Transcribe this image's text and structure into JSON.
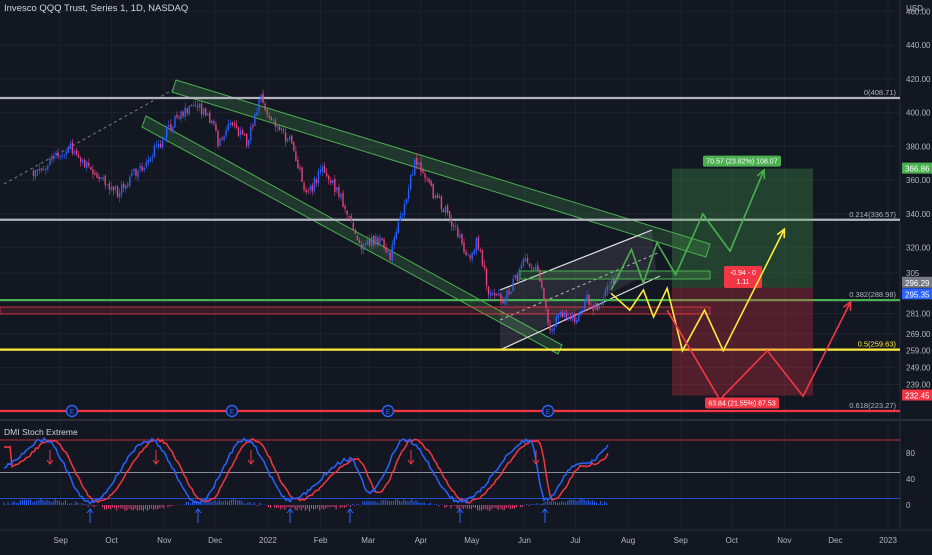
{
  "header": {
    "title": "Invesco QQQ Trust, Series 1, 1D, NASDAQ",
    "currency": "USD"
  },
  "indicator": {
    "title": "DMI Stoch Extreme"
  },
  "colors": {
    "background": "#131722",
    "grid": "#1e222d",
    "up": "#2962ff",
    "down": "#ec407a",
    "fib_gray": "#b2b5be",
    "fib_green": "#4caf50",
    "fib_yellow": "#ffeb3b",
    "fib_red": "#f23645",
    "channel": "#4caf50",
    "stoch_k": "#2962ff",
    "stoch_d": "#f23645"
  },
  "chart_data": {
    "type": "candlestick",
    "y_axis": {
      "ticks": [
        460,
        440,
        420,
        400,
        380,
        360,
        340,
        320,
        305,
        296.29,
        281,
        269,
        259,
        249,
        239
      ],
      "tick_labels": [
        "460.00",
        "440.00",
        "420.00",
        "400.00",
        "380.00",
        "360.00",
        "340.00",
        "320.00",
        "305",
        "296.29",
        "281.00",
        "269.00",
        "259.00",
        "249.00",
        "239.00"
      ],
      "ylim": [
        225,
        475
      ]
    },
    "x_axis": {
      "tick_labels": [
        "Sep",
        "Oct",
        "Nov",
        "Dec",
        "2022",
        "Feb",
        "Mar",
        "Apr",
        "May",
        "Jun",
        "Jul",
        "Aug",
        "Sep",
        "Oct",
        "Nov",
        "Dec",
        "2023"
      ]
    },
    "price_path": [
      [
        "2021-08-16",
        366
      ],
      [
        "2021-08-25",
        370
      ],
      [
        "2021-09-07",
        379
      ],
      [
        "2021-09-20",
        366
      ],
      [
        "2021-10-04",
        353
      ],
      [
        "2021-10-13",
        362
      ],
      [
        "2021-10-27",
        378
      ],
      [
        "2021-11-08",
        398
      ],
      [
        "2021-11-19",
        405
      ],
      [
        "2021-11-30",
        392
      ],
      [
        "2021-12-03",
        380
      ],
      [
        "2021-12-10",
        396
      ],
      [
        "2021-12-20",
        382
      ],
      [
        "2021-12-28",
        408
      ],
      [
        "2022-01-05",
        392
      ],
      [
        "2022-01-14",
        383
      ],
      [
        "2022-01-24",
        350
      ],
      [
        "2022-02-02",
        368
      ],
      [
        "2022-02-14",
        347
      ],
      [
        "2022-02-24",
        322
      ],
      [
        "2022-03-07",
        325
      ],
      [
        "2022-03-14",
        316
      ],
      [
        "2022-03-29",
        372
      ],
      [
        "2022-04-08",
        352
      ],
      [
        "2022-04-20",
        335
      ],
      [
        "2022-04-29",
        313
      ],
      [
        "2022-05-04",
        325
      ],
      [
        "2022-05-12",
        291
      ],
      [
        "2022-05-20",
        290
      ],
      [
        "2022-06-02",
        313
      ],
      [
        "2022-06-08",
        310
      ],
      [
        "2022-06-16",
        272
      ],
      [
        "2022-06-22",
        281
      ],
      [
        "2022-07-01",
        278
      ],
      [
        "2022-07-08",
        290
      ],
      [
        "2022-07-14",
        283
      ],
      [
        "2022-07-22",
        299
      ],
      [
        "2022-07-28",
        305
      ]
    ],
    "fib_levels": [
      {
        "ratio": "0",
        "label": "0(408.71)",
        "price": 408.71,
        "color": "#b2b5be"
      },
      {
        "ratio": "0.214",
        "label": "0.214(336.57)",
        "price": 336.57,
        "color": "#b2b5be"
      },
      {
        "ratio": "0.382",
        "label": "0.382(288.98)",
        "price": 288.98,
        "color": "#4caf50"
      },
      {
        "ratio": "0.5",
        "label": "0.5(259.63)",
        "price": 259.63,
        "color": "#ffeb3b"
      },
      {
        "ratio": "0.618",
        "label": "0.618(223.27)",
        "price": 223.27,
        "color": "#f23645"
      }
    ],
    "price_labels": [
      {
        "text": "366.86",
        "price": 366.86,
        "bg": "#4caf50",
        "fg": "#ffffff"
      },
      {
        "text": "296.29",
        "price": 296.29,
        "bg": "#787b86",
        "fg": "#ffffff"
      },
      {
        "text": "295.35",
        "price": 295.35,
        "bg": "#2962ff",
        "fg": "#ffffff"
      },
      {
        "text": "232.45",
        "price": 232.45,
        "bg": "#f23645",
        "fg": "#ffffff"
      }
    ],
    "position": {
      "entry": 296.29,
      "target": 366.86,
      "stop": 232.45,
      "target_text": "70.57 (23.82%) 108.07",
      "stop_text": "63.84 (21.55%) 87.53",
      "info_text_1": "-0.94 - 0",
      "info_text_2": "1.11"
    },
    "scenario_paths": [
      {
        "name": "green",
        "color": "#4caf50",
        "points": [
          [
            "2022-07-22",
            295
          ],
          [
            "2022-08-03",
            319
          ],
          [
            "2022-08-10",
            299
          ],
          [
            "2022-08-18",
            323
          ],
          [
            "2022-08-29",
            304
          ],
          [
            "2022-09-14",
            340
          ],
          [
            "2022-09-30",
            318
          ],
          [
            "2022-10-20",
            366
          ]
        ]
      },
      {
        "name": "yellow",
        "color": "#ffeb3b",
        "points": [
          [
            "2022-07-22",
            293
          ],
          [
            "2022-08-02",
            283
          ],
          [
            "2022-08-10",
            295
          ],
          [
            "2022-08-16",
            279
          ],
          [
            "2022-08-24",
            296
          ],
          [
            "2022-09-02",
            259
          ],
          [
            "2022-09-15",
            283
          ],
          [
            "2022-09-26",
            259
          ],
          [
            "2022-11-01",
            331
          ]
        ]
      },
      {
        "name": "red",
        "color": "#f23645",
        "points": [
          [
            "2022-08-24",
            283
          ],
          [
            "2022-09-24",
            230
          ],
          [
            "2022-10-22",
            259
          ],
          [
            "2022-11-12",
            232
          ],
          [
            "2022-12-10",
            288
          ]
        ]
      }
    ],
    "event_markers": [
      "E",
      "E",
      "E",
      "E"
    ],
    "stoch": {
      "y_ticks": [
        80,
        40,
        0
      ],
      "ylim": [
        -22,
        115
      ],
      "levels": [
        {
          "value": 100,
          "color": "#f23645"
        },
        {
          "value": 50,
          "color": "#b2b5be"
        },
        {
          "value": 10,
          "color": "#2962ff"
        }
      ]
    }
  }
}
